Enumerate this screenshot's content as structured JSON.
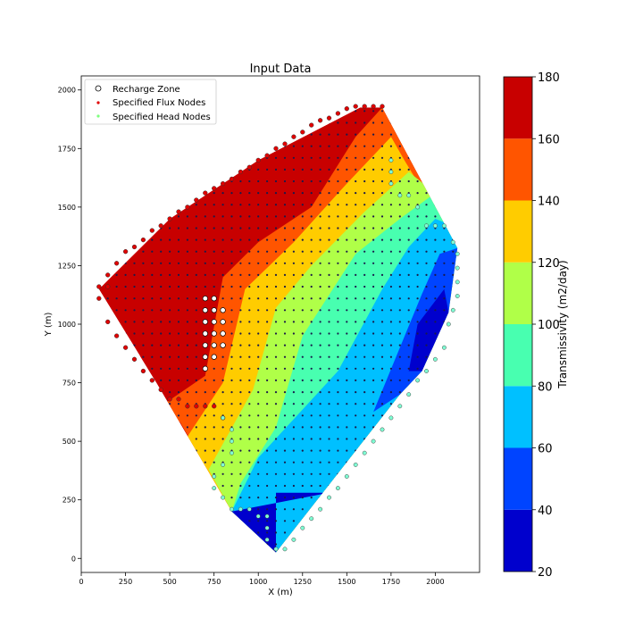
{
  "chart_data": {
    "type": "heatmap",
    "title": "Input Data",
    "xlabel": "X (m)",
    "ylabel": "Y (m)",
    "xlim": [
      0,
      2250
    ],
    "ylim": [
      -60,
      2060
    ],
    "xticks": [
      0,
      250,
      500,
      750,
      1000,
      1250,
      1500,
      1750,
      2000
    ],
    "yticks": [
      0,
      250,
      500,
      750,
      1000,
      1250,
      1500,
      1750,
      2000
    ],
    "colorbar": {
      "label": "Transmissivity (m2/day)",
      "ticks": [
        20,
        40,
        60,
        80,
        100,
        120,
        140,
        160,
        180
      ],
      "levels": [
        {
          "from": 20,
          "to": 40,
          "color": "#0000cd"
        },
        {
          "from": 40,
          "to": 60,
          "color": "#0044ff"
        },
        {
          "from": 60,
          "to": 80,
          "color": "#00c0ff"
        },
        {
          "from": 80,
          "to": 100,
          "color": "#48ffb0"
        },
        {
          "from": 100,
          "to": 120,
          "color": "#b0ff48"
        },
        {
          "from": 120,
          "to": 140,
          "color": "#ffcc00"
        },
        {
          "from": 140,
          "to": 160,
          "color": "#ff5500"
        },
        {
          "from": 160,
          "to": 180,
          "color": "#c80000"
        }
      ]
    },
    "domain_boundary": [
      [
        100,
        1150
      ],
      [
        500,
        1450
      ],
      [
        1000,
        1700
      ],
      [
        1575,
        1925
      ],
      [
        1700,
        1925
      ],
      [
        2125,
        1325
      ],
      [
        2075,
        1050
      ],
      [
        1925,
        800
      ],
      [
        1800,
        700
      ],
      [
        1100,
        25
      ],
      [
        850,
        200
      ],
      [
        425,
        750
      ]
    ],
    "zones": [
      {
        "level": 2,
        "polygon": [
          [
            1650,
            625
          ],
          [
            1925,
            1130
          ],
          [
            2025,
            1300
          ],
          [
            2125,
            1325
          ],
          [
            2075,
            1050
          ],
          [
            1925,
            800
          ],
          [
            1800,
            700
          ]
        ]
      },
      {
        "level": 3,
        "polygon": [
          [
            1450,
            800
          ],
          [
            1700,
            1150
          ],
          [
            1850,
            1330
          ],
          [
            2000,
            1450
          ],
          [
            2100,
            1420
          ],
          [
            2125,
            1325
          ],
          [
            2075,
            1050
          ],
          [
            1925,
            800
          ],
          [
            1800,
            700
          ],
          [
            1100,
            25
          ],
          [
            850,
            200
          ],
          [
            1000,
            430
          ]
        ]
      },
      {
        "level": 4,
        "polygon": [
          [
            1100,
            560
          ],
          [
            1250,
            950
          ],
          [
            1550,
            1300
          ],
          [
            1800,
            1450
          ],
          [
            2000,
            1560
          ],
          [
            2100,
            1420
          ],
          [
            2125,
            1325
          ],
          [
            2075,
            1050
          ],
          [
            1925,
            800
          ],
          [
            1800,
            700
          ],
          [
            1100,
            25
          ],
          [
            850,
            200
          ],
          [
            900,
            320
          ]
        ]
      },
      {
        "level": 5,
        "polygon": [
          [
            970,
            720
          ],
          [
            1100,
            1070
          ],
          [
            1300,
            1250
          ],
          [
            1600,
            1480
          ],
          [
            1850,
            1650
          ],
          [
            2000,
            1560
          ],
          [
            2100,
            1420
          ],
          [
            2125,
            1325
          ],
          [
            2075,
            1050
          ],
          [
            1925,
            800
          ],
          [
            1800,
            700
          ],
          [
            1100,
            25
          ],
          [
            850,
            200
          ],
          [
            720,
            380
          ]
        ]
      },
      {
        "level": 6,
        "polygon": [
          [
            800,
            750
          ],
          [
            925,
            1150
          ],
          [
            1200,
            1350
          ],
          [
            1500,
            1600
          ],
          [
            1750,
            1800
          ],
          [
            1825,
            1700
          ],
          [
            2125,
            1325
          ],
          [
            2075,
            1050
          ],
          [
            1925,
            800
          ],
          [
            1800,
            700
          ],
          [
            1100,
            25
          ],
          [
            850,
            200
          ],
          [
            600,
            520
          ]
        ]
      },
      {
        "level": 7,
        "polygon": [
          [
            450,
            650
          ],
          [
            700,
            780
          ],
          [
            800,
            1200
          ],
          [
            1000,
            1350
          ],
          [
            1300,
            1500
          ],
          [
            1550,
            1800
          ],
          [
            1700,
            1925
          ],
          [
            2125,
            1325
          ],
          [
            2075,
            1050
          ],
          [
            1925,
            800
          ],
          [
            1800,
            700
          ],
          [
            1100,
            25
          ],
          [
            850,
            200
          ],
          [
            560,
            580
          ]
        ]
      },
      {
        "level": 8,
        "polygon": [
          [
            310,
            850
          ],
          [
            550,
            1000
          ],
          [
            620,
            1350
          ],
          [
            900,
            1500
          ],
          [
            1100,
            1500
          ],
          [
            1250,
            1550
          ],
          [
            1400,
            1700
          ],
          [
            1550,
            1800
          ],
          [
            1575,
            1925
          ],
          [
            1700,
            1925
          ],
          [
            2125,
            1325
          ],
          [
            2075,
            1050
          ],
          [
            1925,
            800
          ],
          [
            1800,
            700
          ],
          [
            1100,
            25
          ],
          [
            850,
            200
          ],
          [
            425,
            750
          ]
        ]
      },
      {
        "level": 1,
        "polygon": [
          [
            1100,
            25
          ],
          [
            1100,
            280
          ],
          [
            1400,
            280
          ],
          [
            850,
            200
          ]
        ]
      },
      {
        "level": 1,
        "polygon": [
          [
            1850,
            800
          ],
          [
            1900,
            1000
          ],
          [
            2050,
            1150
          ],
          [
            2075,
            1050
          ],
          [
            1925,
            800
          ]
        ]
      }
    ],
    "series": [
      {
        "name": "Recharge Zone",
        "marker": "open circle",
        "points": [
          [
            700,
            1110
          ],
          [
            700,
            1060
          ],
          [
            700,
            1010
          ],
          [
            700,
            960
          ],
          [
            700,
            910
          ],
          [
            700,
            860
          ],
          [
            700,
            810
          ],
          [
            750,
            1110
          ],
          [
            750,
            1060
          ],
          [
            750,
            1010
          ],
          [
            750,
            960
          ],
          [
            750,
            910
          ],
          [
            750,
            860
          ],
          [
            800,
            1060
          ],
          [
            800,
            1010
          ],
          [
            800,
            960
          ],
          [
            800,
            910
          ]
        ]
      },
      {
        "name": "Specified Flux Nodes",
        "marker": "red point",
        "points": [
          [
            100,
            1160
          ],
          [
            100,
            1110
          ],
          [
            150,
            1160
          ],
          [
            150,
            1210
          ],
          [
            200,
            1260
          ],
          [
            250,
            1310
          ],
          [
            300,
            1330
          ],
          [
            350,
            1360
          ],
          [
            400,
            1400
          ],
          [
            450,
            1420
          ],
          [
            500,
            1450
          ],
          [
            550,
            1480
          ],
          [
            600,
            1500
          ],
          [
            650,
            1530
          ],
          [
            700,
            1560
          ],
          [
            750,
            1580
          ],
          [
            800,
            1600
          ],
          [
            850,
            1620
          ],
          [
            900,
            1650
          ],
          [
            950,
            1670
          ],
          [
            1000,
            1700
          ],
          [
            1050,
            1720
          ],
          [
            1100,
            1750
          ],
          [
            1150,
            1770
          ],
          [
            1200,
            1800
          ],
          [
            1250,
            1820
          ],
          [
            1300,
            1850
          ],
          [
            1350,
            1870
          ],
          [
            1400,
            1880
          ],
          [
            1450,
            1900
          ],
          [
            1500,
            1920
          ],
          [
            1550,
            1930
          ],
          [
            1600,
            1930
          ],
          [
            1650,
            1930
          ],
          [
            1700,
            1930
          ],
          [
            150,
            1010
          ],
          [
            200,
            950
          ],
          [
            250,
            900
          ],
          [
            300,
            850
          ],
          [
            350,
            800
          ],
          [
            400,
            760
          ],
          [
            450,
            720
          ],
          [
            500,
            680
          ],
          [
            550,
            680
          ],
          [
            600,
            650
          ],
          [
            650,
            650
          ],
          [
            700,
            650
          ],
          [
            750,
            650
          ],
          [
            800,
            600
          ]
        ]
      },
      {
        "name": "Specified Head Nodes",
        "marker": "cyan point",
        "points": [
          [
            1100,
            40
          ],
          [
            1150,
            40
          ],
          [
            1200,
            80
          ],
          [
            1250,
            130
          ],
          [
            1300,
            170
          ],
          [
            1350,
            210
          ],
          [
            1400,
            260
          ],
          [
            1450,
            300
          ],
          [
            1500,
            350
          ],
          [
            1550,
            400
          ],
          [
            1600,
            450
          ],
          [
            1650,
            500
          ],
          [
            1700,
            550
          ],
          [
            1750,
            600
          ],
          [
            1800,
            650
          ],
          [
            1850,
            700
          ],
          [
            1900,
            760
          ],
          [
            1950,
            800
          ],
          [
            2000,
            850
          ],
          [
            2050,
            900
          ],
          [
            2075,
            1000
          ],
          [
            2100,
            1060
          ],
          [
            2125,
            1120
          ],
          [
            2125,
            1180
          ],
          [
            2125,
            1240
          ],
          [
            2125,
            1300
          ],
          [
            2100,
            1350
          ],
          [
            2050,
            1420
          ],
          [
            2000,
            1420
          ],
          [
            1950,
            1420
          ],
          [
            1900,
            1500
          ],
          [
            1850,
            1550
          ],
          [
            1800,
            1550
          ],
          [
            1750,
            1600
          ],
          [
            1750,
            1650
          ],
          [
            1750,
            1700
          ],
          [
            1050,
            80
          ],
          [
            1050,
            130
          ],
          [
            1050,
            180
          ],
          [
            1000,
            180
          ],
          [
            950,
            210
          ],
          [
            900,
            210
          ],
          [
            850,
            210
          ],
          [
            800,
            260
          ],
          [
            750,
            300
          ],
          [
            750,
            350
          ],
          [
            800,
            400
          ],
          [
            850,
            450
          ],
          [
            850,
            500
          ],
          [
            850,
            550
          ],
          [
            800,
            600
          ]
        ]
      }
    ],
    "legend": {
      "placement": "top-left",
      "entries": [
        "Recharge Zone",
        "Specified Flux Nodes",
        "Specified Head Nodes"
      ]
    },
    "grid": false
  }
}
